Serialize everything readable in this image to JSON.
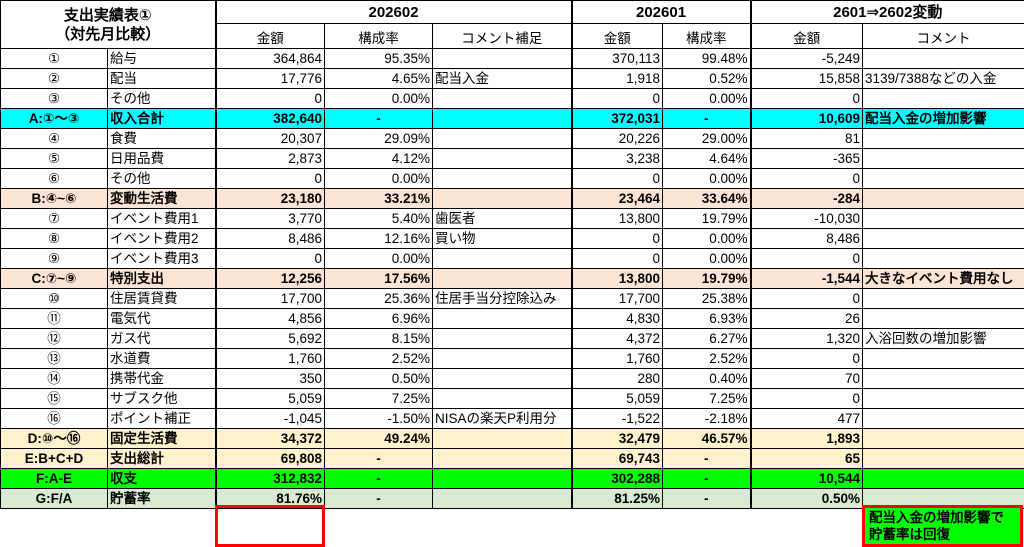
{
  "title_line1": "支出実績表①",
  "title_line2": "（対先月比較）",
  "periods": {
    "current": "202602",
    "previous": "202601",
    "change": "2601⇒2602変動"
  },
  "subheaders": {
    "amount": "金額",
    "rate": "構成率",
    "comment_supp": "コメント補足",
    "comment": "コメント"
  },
  "rows": [
    {
      "no": "①",
      "label": "給与",
      "cur_amt": "364,864",
      "cur_rate": "95.35%",
      "cur_comment": "",
      "prev_amt": "370,113",
      "prev_rate": "99.48%",
      "chg_amt": "-5,249",
      "chg_comment": ""
    },
    {
      "no": "②",
      "label": "配当",
      "cur_amt": "17,776",
      "cur_rate": "4.65%",
      "cur_comment": "配当入金",
      "prev_amt": "1,918",
      "prev_rate": "0.52%",
      "chg_amt": "15,858",
      "chg_comment": "3139/7388などの入金"
    },
    {
      "no": "③",
      "label": "その他",
      "cur_amt": "0",
      "cur_rate": "0.00%",
      "cur_comment": "",
      "prev_amt": "0",
      "prev_rate": "0.00%",
      "chg_amt": "0",
      "chg_comment": ""
    },
    {
      "no": "A:①～③",
      "label": "収入合計",
      "cur_amt": "382,640",
      "cur_rate": "-",
      "cur_comment": "",
      "prev_amt": "372,031",
      "prev_rate": "-",
      "chg_amt": "10,609",
      "chg_comment": "配当入金の増加影響"
    },
    {
      "no": "④",
      "label": "食費",
      "cur_amt": "20,307",
      "cur_rate": "29.09%",
      "cur_comment": "",
      "prev_amt": "20,226",
      "prev_rate": "29.00%",
      "chg_amt": "81",
      "chg_comment": ""
    },
    {
      "no": "⑤",
      "label": "日用品費",
      "cur_amt": "2,873",
      "cur_rate": "4.12%",
      "cur_comment": "",
      "prev_amt": "3,238",
      "prev_rate": "4.64%",
      "chg_amt": "-365",
      "chg_comment": ""
    },
    {
      "no": "⑥",
      "label": "その他",
      "cur_amt": "0",
      "cur_rate": "0.00%",
      "cur_comment": "",
      "prev_amt": "0",
      "prev_rate": "0.00%",
      "chg_amt": "0",
      "chg_comment": ""
    },
    {
      "no": "B:④~⑥",
      "label": "変動生活費",
      "cur_amt": "23,180",
      "cur_rate": "33.21%",
      "cur_comment": "",
      "prev_amt": "23,464",
      "prev_rate": "33.64%",
      "chg_amt": "-284",
      "chg_comment": ""
    },
    {
      "no": "⑦",
      "label": "イベント費用1",
      "cur_amt": "3,770",
      "cur_rate": "5.40%",
      "cur_comment": "歯医者",
      "prev_amt": "13,800",
      "prev_rate": "19.79%",
      "chg_amt": "-10,030",
      "chg_comment": ""
    },
    {
      "no": "⑧",
      "label": "イベント費用2",
      "cur_amt": "8,486",
      "cur_rate": "12.16%",
      "cur_comment": "買い物",
      "prev_amt": "0",
      "prev_rate": "0.00%",
      "chg_amt": "8,486",
      "chg_comment": ""
    },
    {
      "no": "⑨",
      "label": "イベント費用3",
      "cur_amt": "0",
      "cur_rate": "0.00%",
      "cur_comment": "",
      "prev_amt": "0",
      "prev_rate": "0.00%",
      "chg_amt": "0",
      "chg_comment": ""
    },
    {
      "no": "C:⑦~⑨",
      "label": "特別支出",
      "cur_amt": "12,256",
      "cur_rate": "17.56%",
      "cur_comment": "",
      "prev_amt": "13,800",
      "prev_rate": "19.79%",
      "chg_amt": "-1,544",
      "chg_comment": "大きなイベント費用なし"
    },
    {
      "no": "⑩",
      "label": "住居賃貸費",
      "cur_amt": "17,700",
      "cur_rate": "25.36%",
      "cur_comment": "住居手当分控除込み",
      "prev_amt": "17,700",
      "prev_rate": "25.38%",
      "chg_amt": "0",
      "chg_comment": ""
    },
    {
      "no": "⑪",
      "label": "電気代",
      "cur_amt": "4,856",
      "cur_rate": "6.96%",
      "cur_comment": "",
      "prev_amt": "4,830",
      "prev_rate": "6.93%",
      "chg_amt": "26",
      "chg_comment": ""
    },
    {
      "no": "⑫",
      "label": "ガス代",
      "cur_amt": "5,692",
      "cur_rate": "8.15%",
      "cur_comment": "",
      "prev_amt": "4,372",
      "prev_rate": "6.27%",
      "chg_amt": "1,320",
      "chg_comment": "入浴回数の増加影響"
    },
    {
      "no": "⑬",
      "label": "水道費",
      "cur_amt": "1,760",
      "cur_rate": "2.52%",
      "cur_comment": "",
      "prev_amt": "1,760",
      "prev_rate": "2.52%",
      "chg_amt": "0",
      "chg_comment": ""
    },
    {
      "no": "⑭",
      "label": "携帯代金",
      "cur_amt": "350",
      "cur_rate": "0.50%",
      "cur_comment": "",
      "prev_amt": "280",
      "prev_rate": "0.40%",
      "chg_amt": "70",
      "chg_comment": ""
    },
    {
      "no": "⑮",
      "label": "サブスク他",
      "cur_amt": "5,059",
      "cur_rate": "7.25%",
      "cur_comment": "",
      "prev_amt": "5,059",
      "prev_rate": "7.25%",
      "chg_amt": "0",
      "chg_comment": ""
    },
    {
      "no": "⑯",
      "label": "ポイント補正",
      "cur_amt": "-1,045",
      "cur_rate": "-1.50%",
      "cur_comment": "NISAの楽天P利用分",
      "prev_amt": "-1,522",
      "prev_rate": "-2.18%",
      "chg_amt": "477",
      "chg_comment": ""
    },
    {
      "no": "D:⑩～⑯",
      "label": "固定生活費",
      "cur_amt": "34,372",
      "cur_rate": "49.24%",
      "cur_comment": "",
      "prev_amt": "32,479",
      "prev_rate": "46.57%",
      "chg_amt": "1,893",
      "chg_comment": ""
    },
    {
      "no": "E:B+C+D",
      "label": "支出総計",
      "cur_amt": "69,808",
      "cur_rate": "-",
      "cur_comment": "",
      "prev_amt": "69,743",
      "prev_rate": "-",
      "chg_amt": "65",
      "chg_comment": ""
    },
    {
      "no": "F:A-E",
      "label": "収支",
      "cur_amt": "312,832",
      "cur_rate": "-",
      "cur_comment": "",
      "prev_amt": "302,288",
      "prev_rate": "-",
      "chg_amt": "10,544",
      "chg_comment": ""
    },
    {
      "no": "G:F/A",
      "label": "貯蓄率",
      "cur_amt": "81.76%",
      "cur_rate": "-",
      "cur_comment": "",
      "prev_amt": "81.25%",
      "prev_rate": "-",
      "chg_amt": "0.50%",
      "chg_comment": ""
    }
  ],
  "final_note": "配当入金の増加影響で\n貯蓄率は回復",
  "colors": {
    "income_total": "#00ffff",
    "subtotal": "#fce4d6",
    "fixed_total": "#fff2cc",
    "balance": "#00ff00",
    "savings_rate": "#d9ead3",
    "highlight_border": "#ff0000"
  }
}
